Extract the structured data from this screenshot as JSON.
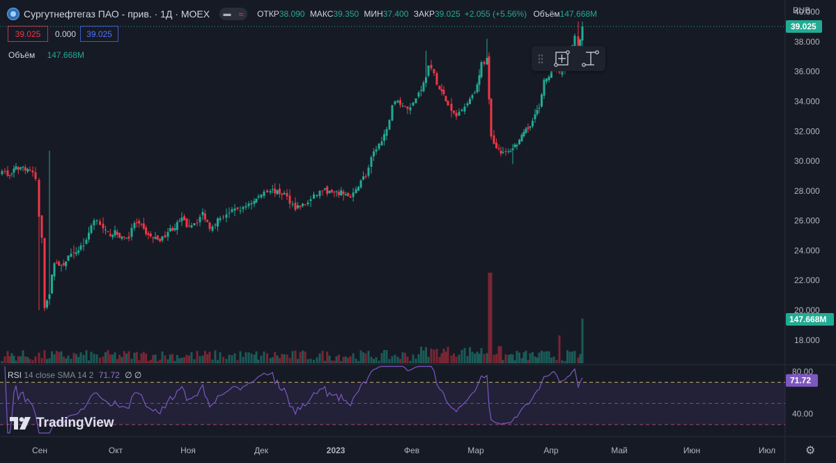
{
  "header": {
    "title": "Сургутнефтегаз ПАО - прив. · 1Д · MOEX",
    "ohlc": {
      "open_label": "ОТКР",
      "open": "38.090",
      "high_label": "МАКС",
      "high": "39.350",
      "low_label": "МИН",
      "low": "37.400",
      "close_label": "ЗАКР",
      "close": "39.025",
      "change": "+2.055 (+5.56%)",
      "volume_label": "Объём",
      "volume": "147.668M"
    },
    "currency": "RUB"
  },
  "price_boxes": {
    "bid": "39.025",
    "spread": "0.000",
    "ask": "39.025"
  },
  "volume_legend": {
    "label": "Объём",
    "value": "147.668M"
  },
  "rsi_legend": {
    "name": "RSI",
    "params": "14 close SMA 14 2",
    "value": "71.72",
    "extra": "∅ ∅"
  },
  "logo": {
    "text": "TradingView"
  },
  "colors": {
    "up": "#22ab94",
    "down": "#f23645",
    "rsi": "#7e57c2",
    "background": "#161a25"
  },
  "icons": {
    "toolbar": [
      "drag-handle-icon",
      "measure-price-range-icon",
      "price-range-icon"
    ],
    "settings": "gear-icon"
  },
  "chart_data": {
    "type": "candlestick",
    "symbol": "Сургутнефтегаз ПАО - прив.",
    "interval": "1Д",
    "exchange": "MOEX",
    "currency": "RUB",
    "price_axis_ticks": [
      "18.000",
      "20.000",
      "22.000",
      "24.000",
      "26.000",
      "28.000",
      "30.000",
      "32.000",
      "34.000",
      "36.000",
      "38.000",
      "40.000"
    ],
    "price_range": [
      16.4,
      40.8
    ],
    "time_axis_labels": [
      "Сен",
      "Окт",
      "Ноя",
      "Дек",
      "2023",
      "Фев",
      "Мар",
      "Апр",
      "Май",
      "Июн",
      "Июл"
    ],
    "last_price_label": "39.025",
    "last_volume_label": "147.668M",
    "rsi": {
      "ticks": [
        "80.00",
        "40.00"
      ],
      "upper_band": 70,
      "lower_band": 30,
      "range": [
        20,
        86
      ],
      "last_label": "71.72"
    },
    "keyframes_close": [
      [
        0,
        29.5
      ],
      [
        8,
        29.0
      ],
      [
        14,
        29.2
      ],
      [
        20,
        29.5
      ],
      [
        30,
        29.6
      ],
      [
        40,
        29.4
      ],
      [
        48,
        28.8
      ],
      [
        53,
        26.2
      ],
      [
        57,
        24.9
      ],
      [
        61,
        20.3
      ],
      [
        68,
        21.2
      ],
      [
        75,
        23.3
      ],
      [
        85,
        22.9
      ],
      [
        95,
        23.6
      ],
      [
        103,
        23.7
      ],
      [
        113,
        24.3
      ],
      [
        121,
        24.6
      ],
      [
        128,
        25.8
      ],
      [
        136,
        26.2
      ],
      [
        145,
        25.4
      ],
      [
        152,
        25.1
      ],
      [
        162,
        25.2
      ],
      [
        172,
        24.9
      ],
      [
        182,
        24.9
      ],
      [
        190,
        25.9
      ],
      [
        200,
        25.6
      ],
      [
        210,
        25.0
      ],
      [
        220,
        24.8
      ],
      [
        230,
        24.8
      ],
      [
        238,
        25.3
      ],
      [
        248,
        25.6
      ],
      [
        258,
        26.1
      ],
      [
        265,
        25.7
      ],
      [
        272,
        25.8
      ],
      [
        280,
        26.0
      ],
      [
        288,
        26.5
      ],
      [
        298,
        25.6
      ],
      [
        306,
        25.9
      ],
      [
        313,
        26.2
      ],
      [
        322,
        26.5
      ],
      [
        330,
        26.6
      ],
      [
        338,
        26.8
      ],
      [
        346,
        26.8
      ],
      [
        354,
        27.2
      ],
      [
        362,
        27.3
      ],
      [
        368,
        27.6
      ],
      [
        376,
        28.0
      ],
      [
        385,
        28.1
      ],
      [
        395,
        27.9
      ],
      [
        405,
        27.8
      ],
      [
        413,
        27.3
      ],
      [
        421,
        26.9
      ],
      [
        428,
        27.0
      ],
      [
        435,
        27.1
      ],
      [
        443,
        27.4
      ],
      [
        452,
        27.8
      ],
      [
        460,
        28.1
      ],
      [
        470,
        27.9
      ],
      [
        480,
        27.8
      ],
      [
        490,
        27.9
      ],
      [
        500,
        27.5
      ],
      [
        508,
        28.0
      ],
      [
        515,
        28.8
      ],
      [
        522,
        29.0
      ],
      [
        530,
        30.1
      ],
      [
        537,
        30.9
      ],
      [
        545,
        31.3
      ],
      [
        552,
        32.0
      ],
      [
        560,
        33.8
      ],
      [
        568,
        34.0
      ],
      [
        575,
        33.7
      ],
      [
        582,
        33.6
      ],
      [
        590,
        33.9
      ],
      [
        598,
        34.6
      ],
      [
        605,
        35.2
      ],
      [
        612,
        36.3
      ],
      [
        620,
        35.8
      ],
      [
        628,
        34.8
      ],
      [
        634,
        34.4
      ],
      [
        640,
        33.7
      ],
      [
        645,
        33.3
      ],
      [
        652,
        33.0
      ],
      [
        660,
        33.6
      ],
      [
        668,
        33.9
      ],
      [
        675,
        34.5
      ],
      [
        682,
        35.0
      ],
      [
        688,
        36.5
      ],
      [
        696,
        36.8
      ],
      [
        702,
        31.8
      ],
      [
        706,
        31.2
      ],
      [
        713,
        30.8
      ],
      [
        719,
        30.5
      ],
      [
        727,
        30.6
      ],
      [
        733,
        30.9
      ],
      [
        739,
        31.2
      ],
      [
        746,
        31.6
      ],
      [
        752,
        32.0
      ],
      [
        758,
        32.4
      ],
      [
        765,
        33.3
      ],
      [
        771,
        33.5
      ],
      [
        778,
        35.3
      ],
      [
        785,
        35.8
      ],
      [
        792,
        36.4
      ],
      [
        800,
        36.0
      ],
      [
        808,
        36.1
      ],
      [
        815,
        37.0
      ],
      [
        822,
        38.3
      ],
      [
        827,
        37.1
      ],
      [
        833,
        39.0
      ]
    ],
    "spikes": [
      {
        "x": 72,
        "high": 30.7
      },
      {
        "x": 58,
        "low": 20.0
      },
      {
        "x": 613,
        "high": 37.4
      },
      {
        "x": 700,
        "high": 38.2
      },
      {
        "x": 736,
        "low": 29.8
      },
      {
        "x": 830,
        "high": 39.35
      }
    ]
  }
}
